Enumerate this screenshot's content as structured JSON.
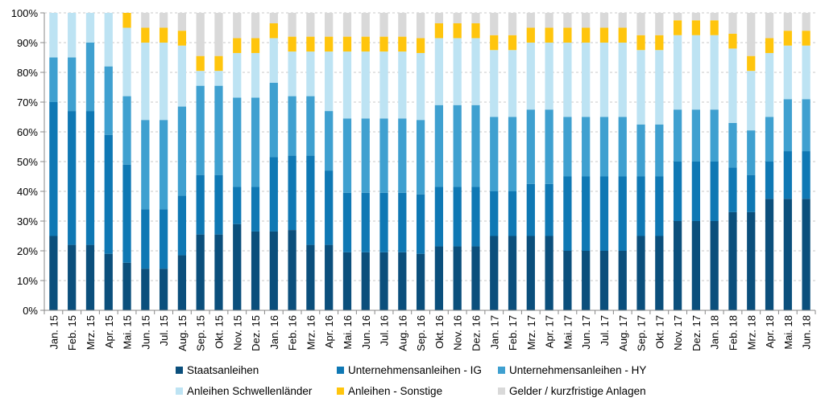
{
  "chart_data": {
    "type": "bar",
    "stacked": true,
    "percent_stacked": true,
    "title": "",
    "xlabel": "",
    "ylabel": "",
    "ylim": [
      0,
      100
    ],
    "yticks": [
      "0%",
      "10%",
      "20%",
      "30%",
      "40%",
      "50%",
      "60%",
      "70%",
      "80%",
      "90%",
      "100%"
    ],
    "grid": true,
    "legend_position": "bottom",
    "categories": [
      "Jan. 15",
      "Feb. 15",
      "Mrz. 15",
      "Apr. 15",
      "Mai. 15",
      "Jun. 15",
      "Jul. 15",
      "Aug. 15",
      "Sep. 15",
      "Okt. 15",
      "Nov. 15",
      "Dez. 15",
      "Jan. 16",
      "Feb. 16",
      "Mrz. 16",
      "Apr. 16",
      "Mai. 16",
      "Jun. 16",
      "Jul. 16",
      "Aug. 16",
      "Sep. 16",
      "Okt. 16",
      "Nov. 16",
      "Dez. 16",
      "Jan. 17",
      "Feb. 17",
      "Mrz. 17",
      "Apr. 17",
      "Mai. 17",
      "Jun. 17",
      "Jul. 17",
      "Aug. 17",
      "Sep. 17",
      "Okt. 17",
      "Nov. 17",
      "Dez. 17",
      "Jan. 18",
      "Feb. 18",
      "Mrz. 18",
      "Apr. 18",
      "Mai. 18",
      "Jun. 18"
    ],
    "series": [
      {
        "name": "Staatsanleihen",
        "color": "#0b4f7c",
        "values": [
          25,
          22,
          22,
          19,
          16,
          14,
          14,
          18.5,
          25.5,
          25.5,
          29,
          26.5,
          26.5,
          27,
          22,
          22,
          19.5,
          19.5,
          19.5,
          19.5,
          19,
          21.5,
          21.5,
          21.5,
          25,
          25,
          25,
          25,
          20,
          20,
          20,
          20,
          25,
          25,
          30,
          30,
          30,
          33,
          33,
          37.5,
          37.5,
          37.5
        ]
      },
      {
        "name": "Unternehmensanleihen - IG",
        "color": "#0f78b4",
        "values": [
          45,
          45,
          45,
          40,
          33,
          20,
          20,
          20,
          20,
          20,
          12.5,
          15,
          25,
          25,
          30,
          25,
          20,
          20,
          20,
          20,
          20,
          20,
          20,
          20,
          15,
          15,
          17.5,
          17.5,
          25,
          25,
          25,
          25,
          20,
          20,
          20,
          20,
          20,
          15,
          12.5,
          12.5,
          16,
          16
        ]
      },
      {
        "name": "Unternehmensanleihen - HY",
        "color": "#3fa0d0",
        "values": [
          15,
          18,
          23,
          23,
          23,
          30,
          30,
          30,
          30,
          30,
          30,
          30,
          25,
          20,
          20,
          20,
          25,
          25,
          25,
          25,
          25,
          27.5,
          27.5,
          27.5,
          25,
          25,
          25,
          25,
          20,
          20,
          20,
          20,
          17.5,
          17.5,
          17.5,
          17.5,
          17.5,
          15,
          15,
          15,
          17.5,
          17.5
        ]
      },
      {
        "name": "Anleihen Schwellenländer",
        "color": "#bde3f3",
        "values": [
          15,
          15,
          10,
          18,
          23,
          26,
          26,
          20.5,
          5,
          5,
          15,
          15,
          15,
          15,
          15,
          20,
          22.5,
          22.5,
          22.5,
          22.5,
          22.5,
          22.5,
          22.5,
          22.5,
          22.5,
          22.5,
          22.5,
          22.5,
          25,
          25,
          25,
          25,
          25,
          25,
          25,
          25,
          25,
          25,
          20,
          21.5,
          18,
          18
        ]
      },
      {
        "name": "Anleihen - Sonstige",
        "color": "#ffc50d",
        "values": [
          0,
          0,
          0,
          0,
          5,
          5,
          5,
          5,
          5,
          5,
          5,
          5,
          5,
          5,
          5,
          5,
          5,
          5,
          5,
          5,
          5,
          5,
          5,
          5,
          5,
          5,
          5,
          5,
          5,
          5,
          5,
          5,
          5,
          5,
          5,
          5,
          5,
          5,
          5,
          5,
          5,
          5
        ]
      },
      {
        "name": "Gelder / kurzfristige Anlagen",
        "color": "#d9d9d9",
        "values": [
          0,
          0,
          0,
          0,
          0,
          5,
          5,
          6,
          14.5,
          14.5,
          8.5,
          8.5,
          3.5,
          8,
          8,
          8,
          8,
          8,
          8,
          8,
          8.5,
          3.5,
          3.5,
          3.5,
          7.5,
          7.5,
          5,
          5,
          5,
          5,
          5,
          5,
          7.5,
          7.5,
          2.5,
          2.5,
          2.5,
          7,
          14.5,
          8.5,
          6,
          6
        ]
      }
    ]
  }
}
